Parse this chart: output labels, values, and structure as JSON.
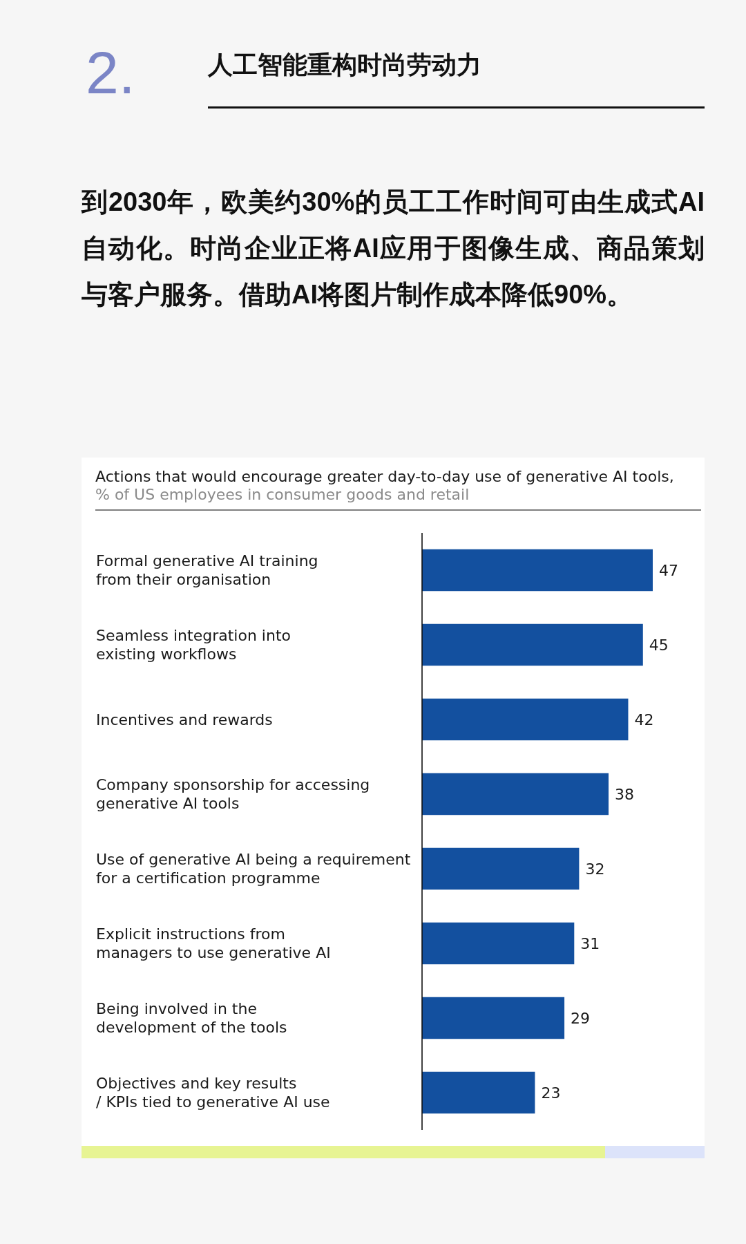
{
  "chart_data": {
    "type": "bar",
    "orientation": "horizontal",
    "title": "Actions that would encourage greater day-to-day use of generative AI tools,",
    "subtitle": "% of US employees in consumer goods and retail",
    "categories": [
      "Formal generative AI training\nfrom their organisation",
      "Seamless integration into\nexisting workflows",
      "Incentives and rewards",
      "Company sponsorship for accessing\ngenerative AI tools",
      "Use of generative AI being a requirement\nfor a certification programme",
      "Explicit instructions from\nmanagers to use generative AI",
      "Being involved in the\ndevelopment of the tools",
      "Objectives and key results\n/ KPIs tied to generative AI use"
    ],
    "values": [
      47,
      45,
      42,
      38,
      32,
      31,
      29,
      23
    ],
    "color": "#13509f",
    "data_labels": true,
    "tick_labels": "y",
    "annotations": [
      "2.",
      "人工智能重构时尚劳动力",
      "到2030年，欧美约30%的员工工作时间可由生成式AI自动化。时尚企业正将AI应用于图像生成、商品策划与客户服务。借助AI将图片制作成本降低90%。"
    ]
  }
}
